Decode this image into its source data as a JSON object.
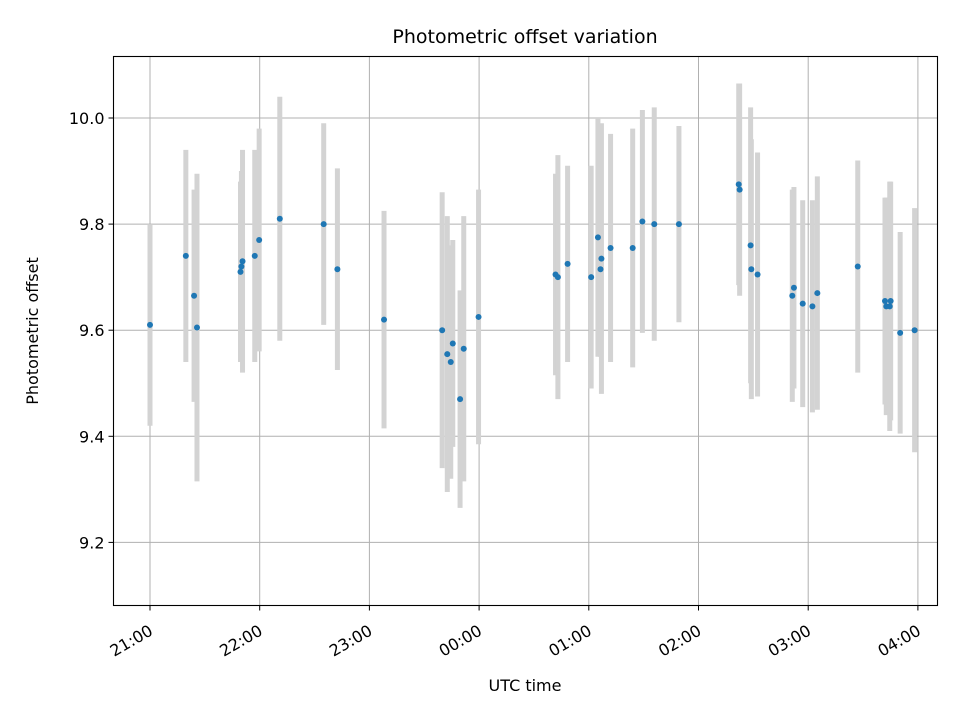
{
  "chart_data": {
    "type": "scatter",
    "title": "Photometric offset variation",
    "xlabel": "UTC time",
    "ylabel": "Photometric offset",
    "x_ticks": [
      "21:00",
      "22:00",
      "23:00",
      "00:00",
      "01:00",
      "02:00",
      "03:00",
      "04:00"
    ],
    "y_ticks": [
      "9.2",
      "9.4",
      "9.6",
      "9.8",
      "10.0"
    ],
    "x_tick_values": [
      0,
      60,
      120,
      180,
      240,
      300,
      360,
      420
    ],
    "y_tick_values": [
      9.2,
      9.4,
      9.6,
      9.8,
      10.0
    ],
    "x_unit_note": "minutes after 21:00 UTC",
    "xlim": [
      -20,
      422
    ],
    "ylim": [
      9.08,
      10.12
    ],
    "grid": true,
    "colors": {
      "points": "#1f77b4",
      "errorbars": "#d3d3d3",
      "grid": "#b0b0b0"
    },
    "points": [
      {
        "x": 0.0,
        "y": 9.61,
        "err": 0.19
      },
      {
        "x": 19.6,
        "y": 9.74,
        "err": 0.2
      },
      {
        "x": 24.1,
        "y": 9.665,
        "err": 0.2
      },
      {
        "x": 25.7,
        "y": 9.605,
        "err": 0.29
      },
      {
        "x": 49.5,
        "y": 9.71,
        "err": 0.17
      },
      {
        "x": 50.0,
        "y": 9.72,
        "err": 0.18
      },
      {
        "x": 50.6,
        "y": 9.73,
        "err": 0.21
      },
      {
        "x": 57.3,
        "y": 9.74,
        "err": 0.2
      },
      {
        "x": 59.7,
        "y": 9.77,
        "err": 0.21
      },
      {
        "x": 71.0,
        "y": 9.81,
        "err": 0.23
      },
      {
        "x": 95.0,
        "y": 9.8,
        "err": 0.19
      },
      {
        "x": 102.5,
        "y": 9.715,
        "err": 0.19
      },
      {
        "x": 128.0,
        "y": 9.62,
        "err": 0.205
      },
      {
        "x": 159.8,
        "y": 9.6,
        "err": 0.26
      },
      {
        "x": 162.6,
        "y": 9.555,
        "err": 0.26
      },
      {
        "x": 164.5,
        "y": 9.54,
        "err": 0.22
      },
      {
        "x": 165.6,
        "y": 9.575,
        "err": 0.195
      },
      {
        "x": 169.6,
        "y": 9.47,
        "err": 0.205
      },
      {
        "x": 171.6,
        "y": 9.565,
        "err": 0.25
      },
      {
        "x": 179.7,
        "y": 9.625,
        "err": 0.24
      },
      {
        "x": 221.8,
        "y": 9.705,
        "err": 0.19
      },
      {
        "x": 223.1,
        "y": 9.7,
        "err": 0.23
      },
      {
        "x": 228.4,
        "y": 9.725,
        "err": 0.185
      },
      {
        "x": 241.3,
        "y": 9.7,
        "err": 0.21
      },
      {
        "x": 245.0,
        "y": 9.775,
        "err": 0.225
      },
      {
        "x": 246.4,
        "y": 9.715,
        "err": 0.165
      },
      {
        "x": 246.9,
        "y": 9.735,
        "err": 0.255
      },
      {
        "x": 251.9,
        "y": 9.755,
        "err": 0.215
      },
      {
        "x": 264.0,
        "y": 9.755,
        "err": 0.225
      },
      {
        "x": 269.3,
        "y": 9.805,
        "err": 0.21
      },
      {
        "x": 275.8,
        "y": 9.8,
        "err": 0.22
      },
      {
        "x": 289.3,
        "y": 9.8,
        "err": 0.185
      },
      {
        "x": 322.0,
        "y": 9.875,
        "err": 0.19
      },
      {
        "x": 322.5,
        "y": 9.865,
        "err": 0.2
      },
      {
        "x": 328.5,
        "y": 9.76,
        "err": 0.26
      },
      {
        "x": 328.9,
        "y": 9.715,
        "err": 0.245
      },
      {
        "x": 332.3,
        "y": 9.705,
        "err": 0.23
      },
      {
        "x": 351.3,
        "y": 9.665,
        "err": 0.2
      },
      {
        "x": 352.2,
        "y": 9.68,
        "err": 0.19
      },
      {
        "x": 357.0,
        "y": 9.65,
        "err": 0.195
      },
      {
        "x": 362.3,
        "y": 9.645,
        "err": 0.2
      },
      {
        "x": 365.0,
        "y": 9.67,
        "err": 0.22
      },
      {
        "x": 387.1,
        "y": 9.72,
        "err": 0.2
      },
      {
        "x": 402.0,
        "y": 9.655,
        "err": 0.195
      },
      {
        "x": 402.7,
        "y": 9.645,
        "err": 0.205
      },
      {
        "x": 404.6,
        "y": 9.645,
        "err": 0.235
      },
      {
        "x": 405.1,
        "y": 9.655,
        "err": 0.225
      },
      {
        "x": 410.3,
        "y": 9.595,
        "err": 0.19
      },
      {
        "x": 418.2,
        "y": 9.6,
        "err": 0.23
      }
    ]
  }
}
